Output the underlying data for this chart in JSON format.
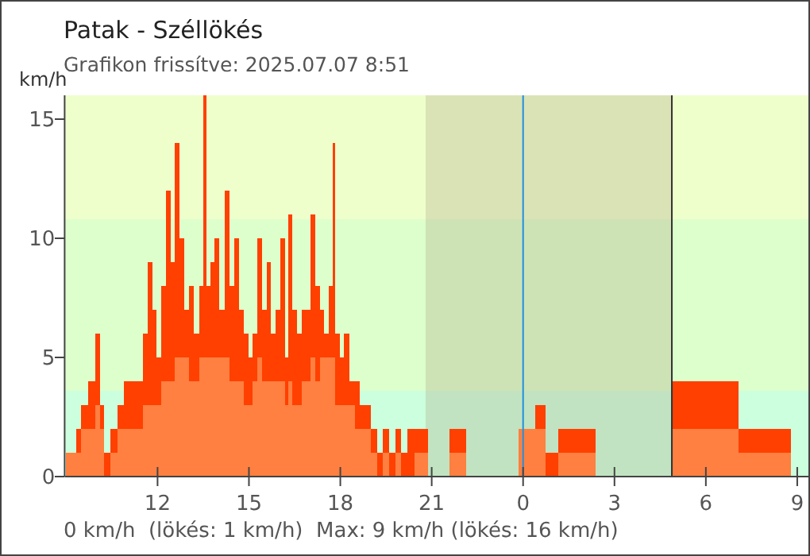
{
  "chart_data": {
    "type": "area",
    "title": "Patak - Széllökés",
    "subtitle": "Grafikon frissítve: 2025.07.07 8:51",
    "ylabel": "km/h",
    "annotations": [
      "0 km/h  (lökés: 1 km/h)  Max: 9 km/h (lökés: 16 km/h)"
    ],
    "x": [
      "2025-07-06T09:00",
      "2025-07-06T09:15",
      "2025-07-06T09:24",
      "2025-07-06T09:36",
      "2025-07-06T09:51",
      "2025-07-06T10:03",
      "2025-07-06T10:09",
      "2025-07-06T10:21",
      "2025-07-06T10:33",
      "2025-07-06T10:48",
      "2025-07-06T11:00",
      "2025-07-06T11:12",
      "2025-07-06T11:27",
      "2025-07-06T11:36",
      "2025-07-06T11:45",
      "2025-07-06T11:54",
      "2025-07-06T12:03",
      "2025-07-06T12:12",
      "2025-07-06T12:21",
      "2025-07-06T12:30",
      "2025-07-06T12:39",
      "2025-07-06T12:48",
      "2025-07-06T12:57",
      "2025-07-06T13:06",
      "2025-07-06T13:18",
      "2025-07-06T13:27",
      "2025-07-06T13:33",
      "2025-07-06T13:39",
      "2025-07-06T13:48",
      "2025-07-06T13:57",
      "2025-07-06T14:06",
      "2025-07-06T14:18",
      "2025-07-06T14:27",
      "2025-07-06T14:36",
      "2025-07-06T14:45",
      "2025-07-06T14:54",
      "2025-07-06T15:03",
      "2025-07-06T15:12",
      "2025-07-06T15:21",
      "2025-07-06T15:30",
      "2025-07-06T15:39",
      "2025-07-06T15:48",
      "2025-07-06T15:57",
      "2025-07-06T16:06",
      "2025-07-06T16:15",
      "2025-07-06T16:21",
      "2025-07-06T16:30",
      "2025-07-06T16:39",
      "2025-07-06T16:48",
      "2025-07-06T16:57",
      "2025-07-06T17:06",
      "2025-07-06T17:15",
      "2025-07-06T17:24",
      "2025-07-06T17:33",
      "2025-07-06T17:42",
      "2025-07-06T17:47",
      "2025-07-06T17:54",
      "2025-07-06T18:03",
      "2025-07-06T18:12",
      "2025-07-06T18:24",
      "2025-07-06T18:33",
      "2025-07-06T18:42",
      "2025-07-06T18:54",
      "2025-07-06T19:06",
      "2025-07-06T19:18",
      "2025-07-06T19:30",
      "2025-07-06T19:42",
      "2025-07-06T19:54",
      "2025-07-06T20:06",
      "2025-07-06T20:18",
      "2025-07-06T20:33",
      "2025-07-06T21:12",
      "2025-07-06T21:57",
      "2025-07-06T22:18",
      "2025-07-06T23:24",
      "2025-07-07T00:18",
      "2025-07-07T00:30",
      "2025-07-07T01:00",
      "2025-07-07T01:18",
      "2025-07-07T03:27",
      "2025-07-07T06:21",
      "2025-07-07T07:48",
      "2025-07-07T08:48"
    ],
    "series": [
      {
        "color": "#ff4000",
        "values": [
          1,
          1,
          2,
          3,
          4,
          6,
          3,
          1,
          2,
          3,
          4,
          4,
          4,
          6,
          9,
          7,
          5,
          8,
          12,
          9,
          14,
          10,
          7,
          8,
          6,
          8,
          16,
          8,
          9,
          10,
          7,
          12,
          8,
          10,
          7,
          6,
          5,
          6,
          10,
          7,
          9,
          6,
          7,
          10,
          5,
          11,
          7,
          6,
          7,
          7,
          11,
          8,
          7,
          6,
          8,
          14,
          6,
          5,
          6,
          4,
          4,
          3,
          3,
          2,
          1,
          2,
          1,
          2,
          1,
          2,
          2,
          0,
          2,
          0,
          0,
          2,
          3,
          1,
          2,
          0,
          4,
          2,
          2
        ]
      },
      {
        "color": "#ff8040",
        "values": [
          1,
          1,
          1,
          2,
          2,
          3,
          2,
          0,
          1,
          2,
          2,
          2,
          2,
          3,
          3,
          3,
          3,
          4,
          4,
          4,
          5,
          5,
          5,
          4,
          4,
          5,
          5,
          5,
          5,
          5,
          5,
          5,
          4,
          4,
          4,
          3,
          3,
          4,
          5,
          4,
          4,
          4,
          4,
          4,
          3,
          4,
          3,
          3,
          4,
          4,
          5,
          4,
          5,
          5,
          5,
          5,
          3,
          3,
          3,
          3,
          2,
          2,
          2,
          1,
          0,
          1,
          0,
          1,
          0,
          0,
          1,
          0,
          1,
          0,
          0,
          2,
          2,
          0,
          1,
          0,
          2,
          1,
          1
        ]
      }
    ],
    "xlim": [
      "2025-07-06T08:57",
      "2025-07-07T09:22"
    ],
    "ylim": [
      0,
      16
    ],
    "xticks": [
      {
        "value": "2025-07-06T12:00",
        "label": "12"
      },
      {
        "value": "2025-07-06T15:00",
        "label": "15"
      },
      {
        "value": "2025-07-06T18:00",
        "label": "18"
      },
      {
        "value": "2025-07-06T21:00",
        "label": "21"
      },
      {
        "value": "2025-07-07T00:00",
        "label": "0"
      },
      {
        "value": "2025-07-07T03:00",
        "label": "3"
      },
      {
        "value": "2025-07-07T06:00",
        "label": "6"
      },
      {
        "value": "2025-07-07T09:00",
        "label": "9"
      }
    ],
    "yticks": [
      0,
      5,
      10,
      15
    ],
    "bands": [
      {
        "axis": "y",
        "from": 0,
        "to": 3.6,
        "color": "#ccffdd"
      },
      {
        "axis": "y",
        "from": 3.6,
        "to": 10.8,
        "color": "#ddffcc"
      },
      {
        "axis": "y",
        "from": 10.8,
        "to": 16,
        "color": "#eeffcc"
      },
      {
        "axis": "x",
        "from": "2025-07-06T20:48",
        "to": "2025-07-07T04:53",
        "color": "#a09070"
      }
    ],
    "ref_lines": [
      {
        "axis": "x",
        "value": "2025-07-07T00:00",
        "color": "#2090e0"
      },
      {
        "axis": "x",
        "value": "2025-07-07T04:53",
        "color": "#333333"
      }
    ]
  }
}
